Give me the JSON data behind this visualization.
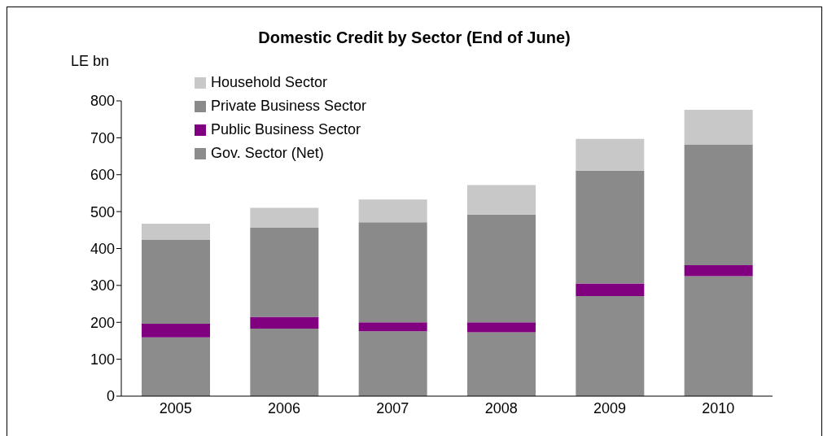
{
  "chart_data": {
    "type": "bar",
    "title": "Domestic Credit by Sector (End of June)",
    "ylabel": "LE bn",
    "categories": [
      "2005",
      "2006",
      "2007",
      "2008",
      "2009",
      "2010"
    ],
    "stacked": true,
    "series": [
      {
        "name": "Gov. Sector (Net)",
        "color": "#8c8c8c",
        "values": [
          159,
          183,
          176,
          173,
          271,
          325
        ]
      },
      {
        "name": "Public Business Sector",
        "color": "#800080",
        "values": [
          37,
          32,
          24,
          27,
          34,
          30
        ]
      },
      {
        "name": "Private Business Sector",
        "color": "#8a8a8a",
        "values": [
          228,
          241,
          271,
          292,
          306,
          327
        ]
      },
      {
        "name": "Household Sector",
        "color": "#c8c8c8",
        "values": [
          43,
          54,
          62,
          80,
          86,
          94
        ]
      }
    ],
    "ylim": [
      0,
      800
    ],
    "yticks": [
      0,
      100,
      200,
      300,
      400,
      500,
      600,
      700,
      800
    ],
    "grid": false,
    "legend": "top left"
  }
}
